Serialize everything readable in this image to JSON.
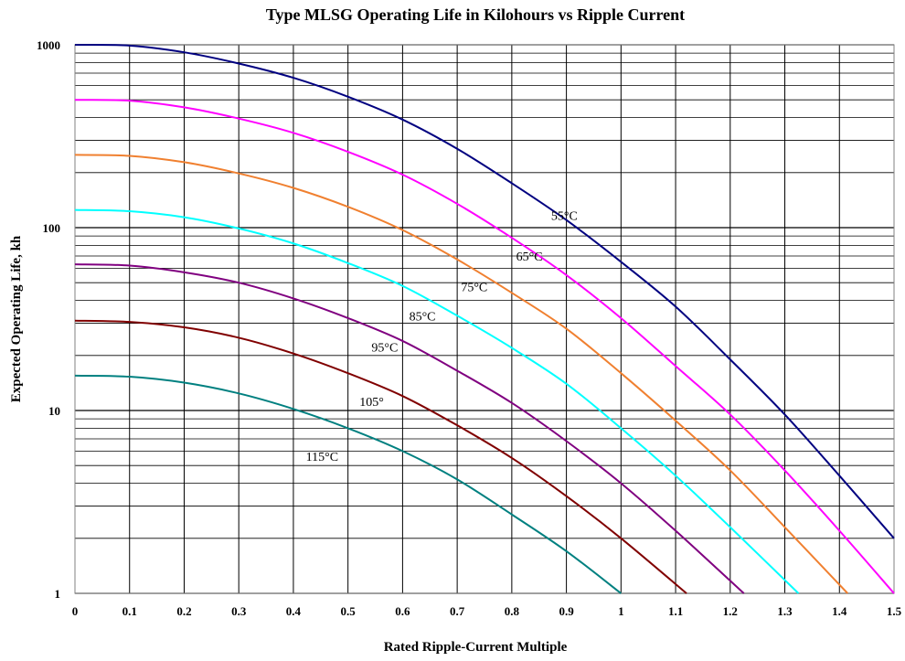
{
  "chart_data": {
    "type": "line",
    "title": "Type MLSG Operating Life in Kilohours vs Ripple Current",
    "xlabel": "Rated Ripple-Current Multiple",
    "ylabel": "Expected Operating Life, kh",
    "xlim": [
      0,
      1.5
    ],
    "ylim": [
      1,
      1000
    ],
    "yscale": "log",
    "grid": true,
    "legend": "none",
    "x_ticks": [
      "0",
      "0.1",
      "0.2",
      "0.3",
      "0.4",
      "0.5",
      "0.6",
      "0.7",
      "0.8",
      "0.9",
      "1",
      "1.1",
      "1.2",
      "1.3",
      "1.4",
      "1.5"
    ],
    "y_ticks": [
      {
        "value": 1,
        "label": "1"
      },
      {
        "value": 10,
        "label": "10"
      },
      {
        "value": 100,
        "label": "100"
      },
      {
        "value": 1000,
        "label": "1000"
      }
    ],
    "series": [
      {
        "x0": 1.5,
        "color": "#000080",
        "x": [
          0,
          0.1,
          0.2,
          0.3,
          0.4,
          0.5,
          0.6,
          0.7,
          0.8,
          0.9,
          1.0,
          1.1,
          1.2,
          1.3,
          1.4,
          1.5
        ],
        "y": [
          1000,
          990,
          910,
          790,
          660,
          520,
          390,
          270,
          175,
          110,
          65,
          37,
          19,
          9.5,
          4.4,
          2
        ]
      },
      {
        "x0": 1.5,
        "color": "#ff00ff",
        "x": [
          0,
          0.1,
          0.2,
          0.3,
          0.4,
          0.5,
          0.6,
          0.7,
          0.8,
          0.9,
          1.0,
          1.1,
          1.2,
          1.3,
          1.4,
          1.5
        ],
        "y": [
          500,
          495,
          455,
          395,
          330,
          260,
          195,
          135,
          88,
          55,
          32,
          17.5,
          9.5,
          4.7,
          2.2,
          1
        ]
      },
      {
        "x0": 1.415,
        "color": "#f08030",
        "x": [
          0,
          0.1,
          0.2,
          0.3,
          0.4,
          0.5,
          0.6,
          0.7,
          0.8,
          0.9,
          1.0,
          1.1,
          1.2,
          1.3,
          1.415
        ],
        "y": [
          250,
          247,
          228,
          198,
          165,
          130,
          97,
          67,
          44,
          28,
          16,
          8.8,
          4.7,
          2.3,
          1
        ]
      },
      {
        "x0": 1.325,
        "color": "#00ffff",
        "x": [
          0,
          0.1,
          0.2,
          0.3,
          0.4,
          0.5,
          0.6,
          0.7,
          0.8,
          0.9,
          1.0,
          1.1,
          1.2,
          1.325
        ],
        "y": [
          125,
          123,
          114,
          99,
          82,
          64,
          48,
          33,
          22,
          14,
          8,
          4.4,
          2.3,
          1
        ]
      },
      {
        "x0": 1.225,
        "color": "#800080",
        "x": [
          0,
          0.1,
          0.2,
          0.3,
          0.4,
          0.5,
          0.6,
          0.7,
          0.8,
          0.9,
          1.0,
          1.1,
          1.225
        ],
        "y": [
          63,
          62,
          57,
          50,
          41,
          32,
          24,
          16.5,
          11,
          6.8,
          4,
          2.2,
          1
        ]
      },
      {
        "x0": 1.12,
        "color": "#800000",
        "x": [
          0,
          0.1,
          0.2,
          0.3,
          0.4,
          0.5,
          0.6,
          0.7,
          0.8,
          0.9,
          1.0,
          1.12
        ],
        "y": [
          31,
          30.5,
          28.5,
          25,
          20.5,
          16,
          12,
          8.3,
          5.5,
          3.4,
          2,
          1
        ]
      },
      {
        "x0": 1.0,
        "color": "#008080",
        "x": [
          0,
          0.1,
          0.2,
          0.3,
          0.4,
          0.5,
          0.6,
          0.7,
          0.8,
          0.9,
          1.0
        ],
        "y": [
          15.5,
          15.3,
          14.2,
          12.4,
          10.2,
          8,
          6,
          4.2,
          2.7,
          1.7,
          1
        ]
      }
    ],
    "annotations": [
      {
        "text": "55°C",
        "x": 0.872,
        "y": 110
      },
      {
        "text": "65°C",
        "x": 0.808,
        "y": 66
      },
      {
        "text": "75°C",
        "x": 0.707,
        "y": 45
      },
      {
        "text": "85°C",
        "x": 0.612,
        "y": 31
      },
      {
        "text": "95°C",
        "x": 0.543,
        "y": 21
      },
      {
        "text": "105°",
        "x": 0.521,
        "y": 10.6
      },
      {
        "text": "115°C",
        "x": 0.423,
        "y": 5.3
      }
    ]
  }
}
